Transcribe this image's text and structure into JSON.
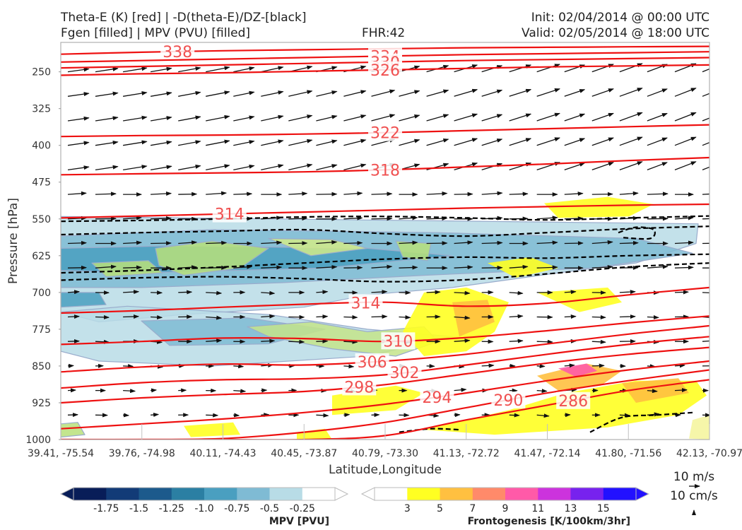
{
  "header": {
    "title_line1": "Theta-E (K) [red] | -D(theta-E)/DZ-[black]",
    "title_line2": "Fgen [filled] | MPV (PVU) [filled]",
    "fhr": "FHR:42",
    "init": "Init: 02/04/2014 @ 00:00 UTC",
    "valid": "Valid: 02/05/2014 @ 18:00 UTC"
  },
  "chart_data": {
    "type": "cross-section",
    "ylabel": "Pressure [hPa]",
    "xlabel": "Latitude,Longitude",
    "yticks": [
      250,
      325,
      400,
      475,
      550,
      625,
      700,
      775,
      850,
      925,
      1000
    ],
    "ylim": [
      1000,
      190
    ],
    "xticks": [
      "39.41, -75.54",
      "39.76, -74.98",
      "40.11, -74.43",
      "40.45, -73.87",
      "40.79, -73.30",
      "41.13, -72.72",
      "41.47, -72.14",
      "41.80, -71.56",
      "42.13, -70.97"
    ],
    "theta_e": {
      "color": "#ee1111",
      "contours": [
        {
          "label": "338",
          "p": [
            214,
            210,
            207,
            205,
            203,
            201,
            200,
            199,
            198
          ]
        },
        {
          "label": "334",
          "p": [
            230,
            227,
            224,
            221,
            218,
            215,
            213,
            211,
            209
          ]
        },
        {
          "label": "330",
          "p": [
            242,
            239,
            236,
            233,
            230,
            227,
            225,
            223,
            221
          ]
        },
        {
          "label": "326",
          "p": [
            257,
            254,
            252,
            249,
            246,
            243,
            240,
            238,
            236
          ]
        },
        {
          "label": "322",
          "p": [
            382,
            380,
            379,
            377,
            374,
            370,
            366,
            362,
            358
          ]
        },
        {
          "label": "318",
          "p": [
            460,
            458,
            456,
            454,
            450,
            444,
            438,
            431,
            425
          ]
        },
        {
          "label": "314",
          "p": [
            548,
            544,
            540,
            536,
            532,
            528,
            525,
            522,
            520
          ]
        },
        {
          "label": "314",
          "p": [
            742,
            737,
            730,
            724,
            720,
            728,
            722,
            705,
            690
          ]
        },
        {
          "label": "310",
          "p": [
            806,
            800,
            793,
            794,
            800,
            792,
            778,
            762,
            748
          ]
        },
        {
          "label": "306",
          "p": [
            862,
            852,
            846,
            848,
            840,
            826,
            805,
            785,
            768
          ]
        },
        {
          "label": "302",
          "p": [
            895,
            884,
            878,
            876,
            868,
            848,
            826,
            806,
            790
          ]
        },
        {
          "label": "298",
          "p": [
            925,
            915,
            908,
            902,
            888,
            866,
            844,
            826,
            812
          ]
        },
        {
          "label": "294",
          "p": [
            978,
            968,
            958,
            945,
            928,
            905,
            880,
            858,
            840
          ]
        },
        {
          "label": "290",
          "p": [
            1000,
            1000,
            998,
            985,
            965,
            935,
            905,
            880,
            858
          ]
        },
        {
          "label": "286",
          "p": [
            1000,
            1000,
            1000,
            1000,
            992,
            960,
            930,
            900,
            878
          ]
        }
      ]
    },
    "stability_dashed": {
      "color": "#000000",
      "style": "dashed",
      "contours": [
        {
          "p": [
            555,
            553,
            550,
            546,
            545,
            548,
            552,
            548,
            544
          ]
        },
        {
          "p": [
            582,
            578,
            575,
            572,
            580,
            585,
            578,
            570,
            565
          ]
        },
        {
          "p": [
            660,
            655,
            648,
            640,
            632,
            628,
            630,
            625,
            622
          ]
        },
        {
          "p": [
            675,
            670,
            668,
            672,
            678,
            674,
            662,
            648,
            640
          ]
        }
      ]
    },
    "mpv_colorbar": {
      "title": "MPV [PVU]",
      "levels": [
        "-1.75",
        "-1.5",
        "-1.25",
        "-1.0",
        "-0.75",
        "-0.5",
        "-0.25"
      ],
      "colors": [
        "#081d58",
        "#123b77",
        "#1c5a8c",
        "#2b7fa3",
        "#4a9fc0",
        "#7fbbd4",
        "#b8dce6",
        "#ffffff"
      ]
    },
    "fgen_colorbar": {
      "title": "Frontogenesis [K/100km/3hr]",
      "levels": [
        "3",
        "5",
        "7",
        "9",
        "11",
        "13",
        "15"
      ],
      "colors": [
        "#ffffff",
        "#ffff22",
        "#ffc040",
        "#ff8a6a",
        "#ff5aa8",
        "#cc33dd",
        "#7722ee",
        "#2211ff"
      ]
    },
    "reference_vectors": [
      "10 m/s",
      "10 cm/s"
    ]
  }
}
